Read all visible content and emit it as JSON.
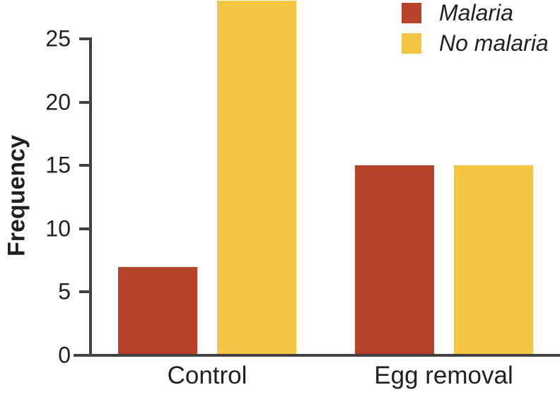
{
  "chart_data": {
    "type": "bar",
    "title": "",
    "xlabel": "",
    "ylabel": "Frequency",
    "categories": [
      "Control",
      "Egg removal"
    ],
    "series": [
      {
        "name": "Malaria",
        "color": "#b5432b",
        "values": [
          7,
          15
        ]
      },
      {
        "name": "No malaria",
        "color": "#f5c646",
        "values": [
          28,
          15
        ]
      }
    ],
    "yticks": [
      0,
      5,
      10,
      15,
      20,
      25
    ],
    "ylim": [
      0,
      25
    ],
    "grid": false,
    "legend_position": "top-right",
    "overflow_note": "Control / No malaria bar (28) extends above the top of the axis and is clipped by the image edge"
  },
  "colors": {
    "axis": "#414042",
    "text": "#231f20",
    "background": "#ffffff"
  }
}
